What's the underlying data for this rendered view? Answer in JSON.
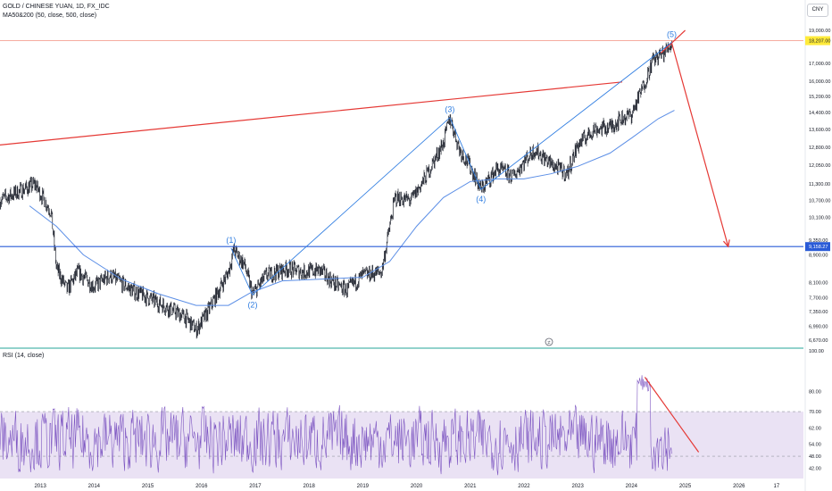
{
  "header": {
    "symbol_line": "GOLD / CHINESE YUAN, 1D, FX_IDC",
    "ma_line": "MA50&200 (50, close, 500, close)",
    "rsi_line": "RSI (14, close)",
    "currency_badge": "CNY"
  },
  "colors": {
    "candle": "#1e222d",
    "ma": "#5b8ee6",
    "wave": "#2f7de1",
    "resistance": "#e53935",
    "support": "#2a5bd7",
    "rsi_line": "#7e57c2",
    "rsi_band": "#d8cbeb",
    "top_line": "#f5a093",
    "separator": "#26a69a",
    "last_price_bg": "#ffeb3b",
    "support_label_bg": "#2a5bd7"
  },
  "chart_data": [
    {
      "type": "candlestick",
      "title": "GOLD / CHINESE YUAN, 1D, FX_IDC",
      "x_axis": {
        "ticks": [
          "2013",
          "2014",
          "2015",
          "2016",
          "2017",
          "2018",
          "2019",
          "2020",
          "2021",
          "2022",
          "2023",
          "2024",
          "2025",
          "2026",
          "17"
        ],
        "range": [
          2012.25,
          2027.2
        ]
      },
      "y_axis": {
        "scale": "log",
        "range": [
          6670,
          19000
        ],
        "ticks": [
          "6,670.00",
          "6,990.00",
          "7,350.00",
          "7,700.00",
          "8,100.00",
          "8,900.00",
          "9,350.00",
          "10,100.00",
          "10,700.00",
          "11,300.00",
          "12,050.00",
          "12,800.00",
          "13,600.00",
          "14,400.00",
          "15,200.00",
          "16,000.00",
          "17,000.00",
          "19,000.00"
        ],
        "ticks_v": [
          6670,
          6990,
          7350,
          7700,
          8100,
          8900,
          9350,
          10100,
          10700,
          11300,
          12050,
          12800,
          13600,
          14400,
          15200,
          16000,
          17000,
          19000
        ]
      },
      "price_path": [
        [
          2012.25,
          10700
        ],
        [
          2012.9,
          11300
        ],
        [
          2013.2,
          10300
        ],
        [
          2013.3,
          8500
        ],
        [
          2013.5,
          7900
        ],
        [
          2013.7,
          8400
        ],
        [
          2014.0,
          8000
        ],
        [
          2014.3,
          8300
        ],
        [
          2014.7,
          7900
        ],
        [
          2015.0,
          7700
        ],
        [
          2015.3,
          7500
        ],
        [
          2015.7,
          7200
        ],
        [
          2015.9,
          6900
        ],
        [
          2016.1,
          7300
        ],
        [
          2016.5,
          8400
        ],
        [
          2016.6,
          9050
        ],
        [
          2016.8,
          8600
        ],
        [
          2016.95,
          7780
        ],
        [
          2017.2,
          8300
        ],
        [
          2017.6,
          8500
        ],
        [
          2017.9,
          8400
        ],
        [
          2018.2,
          8450
        ],
        [
          2018.5,
          8050
        ],
        [
          2018.7,
          7900
        ],
        [
          2019.0,
          8300
        ],
        [
          2019.35,
          8400
        ],
        [
          2019.45,
          9300
        ],
        [
          2019.6,
          10800
        ],
        [
          2019.9,
          10700
        ],
        [
          2020.15,
          11500
        ],
        [
          2020.5,
          13000
        ],
        [
          2020.62,
          14150
        ],
        [
          2020.8,
          12700
        ],
        [
          2021.0,
          12000
        ],
        [
          2021.2,
          11100
        ],
        [
          2021.5,
          11900
        ],
        [
          2021.8,
          11600
        ],
        [
          2022.0,
          12200
        ],
        [
          2022.2,
          12700
        ],
        [
          2022.5,
          12100
        ],
        [
          2022.8,
          11700
        ],
        [
          2023.0,
          12900
        ],
        [
          2023.3,
          13600
        ],
        [
          2023.6,
          13700
        ],
        [
          2023.8,
          14100
        ],
        [
          2024.0,
          14300
        ],
        [
          2024.2,
          15600
        ],
        [
          2024.4,
          17200
        ],
        [
          2024.6,
          17600
        ],
        [
          2024.75,
          18200
        ]
      ],
      "moving_average": {
        "name": "MA50&200",
        "points": [
          [
            2012.8,
            10500
          ],
          [
            2013.3,
            9800
          ],
          [
            2013.8,
            8900
          ],
          [
            2014.5,
            8200
          ],
          [
            2015.2,
            7800
          ],
          [
            2015.9,
            7500
          ],
          [
            2016.5,
            7500
          ],
          [
            2016.9,
            7820
          ],
          [
            2017.5,
            8150
          ],
          [
            2018.3,
            8200
          ],
          [
            2019.0,
            8250
          ],
          [
            2019.5,
            8700
          ],
          [
            2020.0,
            9800
          ],
          [
            2020.5,
            10800
          ],
          [
            2021.0,
            11400
          ],
          [
            2021.5,
            11500
          ],
          [
            2022.0,
            11500
          ],
          [
            2022.5,
            11700
          ],
          [
            2023.0,
            12000
          ],
          [
            2023.6,
            12550
          ],
          [
            2024.0,
            13200
          ],
          [
            2024.5,
            14100
          ],
          [
            2024.8,
            14500
          ]
        ]
      },
      "wave_path": [
        {
          "date": 2016.55,
          "value": 9100,
          "label": "(1)"
        },
        {
          "date": 2016.95,
          "value": 7770,
          "label": "(2)"
        },
        {
          "date": 2020.62,
          "value": 14150,
          "label": "(3)"
        },
        {
          "date": 2021.2,
          "value": 11100,
          "label": "(4)"
        },
        {
          "date": 2024.75,
          "value": 18250,
          "label": "(5)"
        }
      ],
      "resistance_line": [
        [
          2012.25,
          12900
        ],
        [
          2024.2,
          16070
        ]
      ],
      "resistance_line_2": [
        [
          2024.55,
          17600
        ],
        [
          2025.0,
          19000
        ]
      ],
      "projection_arrow": [
        [
          2024.75,
          18200
        ],
        [
          2025.8,
          9150
        ]
      ],
      "support_level": {
        "value": 9150,
        "label": "9,158.27"
      },
      "last_price_label": "18,207.00",
      "top_line_value": 18350,
      "event_marker": "≠"
    },
    {
      "type": "line",
      "title": "RSI (14, close)",
      "y_axis": {
        "range": [
          37,
          100
        ],
        "ticks": [
          "42.00",
          "48.00",
          "54.00",
          "62.00",
          "70.00",
          "80.00",
          "100.00"
        ],
        "ticks_v": [
          42,
          48,
          54,
          62,
          70,
          80,
          100
        ]
      },
      "bands": {
        "upper": 70,
        "lower": 30
      },
      "oscillation": {
        "center": 56,
        "amplitude": 14
      },
      "trend_line": [
        [
          2024.25,
          87
        ],
        [
          2025.25,
          50
        ]
      ]
    }
  ]
}
